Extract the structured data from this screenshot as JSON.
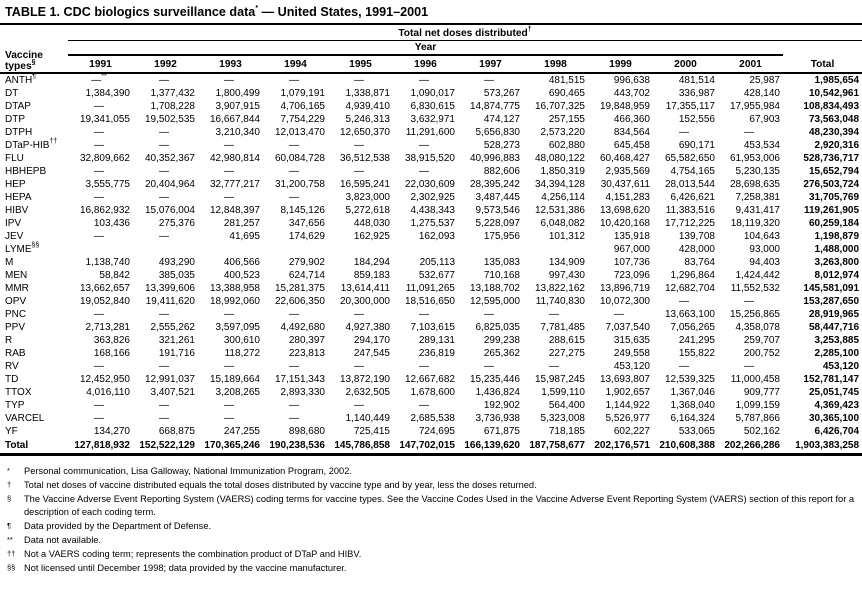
{
  "title": {
    "main": "TABLE 1. CDC biologics surveillance data",
    "sup": "*",
    "rest": " — United States, 1991–2001"
  },
  "table": {
    "group_header": {
      "label": "Total net doses distributed",
      "sup": "†"
    },
    "year_header": "Year",
    "vaccine_col_header": {
      "line1": "Vaccine",
      "line2": "types",
      "sup": "§"
    },
    "columns": [
      "1991",
      "1992",
      "1993",
      "1994",
      "1995",
      "1996",
      "1997",
      "1998",
      "1999",
      "2000",
      "2001",
      "Total"
    ],
    "rows": [
      {
        "label": "ANTH",
        "sup": "¶",
        "values": [
          "—**",
          "—",
          "—",
          "—",
          "—",
          "—",
          "—",
          "481,515",
          "996,638",
          "481,514",
          "25,987",
          "1,985,654"
        ]
      },
      {
        "label": "DT",
        "sup": "",
        "values": [
          "1,384,390",
          "1,377,432",
          "1,800,499",
          "1,079,191",
          "1,338,871",
          "1,090,017",
          "573,267",
          "690,465",
          "443,702",
          "336,987",
          "428,140",
          "10,542,961"
        ]
      },
      {
        "label": "DTAP",
        "sup": "",
        "values": [
          "—",
          "1,708,228",
          "3,907,915",
          "4,706,165",
          "4,939,410",
          "6,830,615",
          "14,874,775",
          "16,707,325",
          "19,848,959",
          "17,355,117",
          "17,955,984",
          "108,834,493"
        ]
      },
      {
        "label": "DTP",
        "sup": "",
        "values": [
          "19,341,055",
          "19,502,535",
          "16,667,844",
          "7,754,229",
          "5,246,313",
          "3,632,971",
          "474,127",
          "257,155",
          "466,360",
          "152,556",
          "67,903",
          "73,563,048"
        ]
      },
      {
        "label": "DTPH",
        "sup": "",
        "values": [
          "—",
          "—",
          "3,210,340",
          "12,013,470",
          "12,650,370",
          "11,291,600",
          "5,656,830",
          "2,573,220",
          "834,564",
          "—",
          "—",
          "48,230,394"
        ]
      },
      {
        "label": "DTaP-HIB",
        "sup": "††",
        "values": [
          "—",
          "—",
          "—",
          "—",
          "—",
          "—",
          "528,273",
          "602,880",
          "645,458",
          "690,171",
          "453,534",
          "2,920,316"
        ]
      },
      {
        "label": "FLU",
        "sup": "",
        "values": [
          "32,809,662",
          "40,352,367",
          "42,980,814",
          "60,084,728",
          "36,512,538",
          "38,915,520",
          "40,996,883",
          "48,080,122",
          "60,468,427",
          "65,582,650",
          "61,953,006",
          "528,736,717"
        ]
      },
      {
        "label": "HBHEPB",
        "sup": "",
        "values": [
          "—",
          "—",
          "—",
          "—",
          "—",
          "—",
          "882,606",
          "1,850,319",
          "2,935,569",
          "4,754,165",
          "5,230,135",
          "15,652,794"
        ]
      },
      {
        "label": "HEP",
        "sup": "",
        "values": [
          "3,555,775",
          "20,404,964",
          "32,777,217",
          "31,200,758",
          "16,595,241",
          "22,030,609",
          "28,395,242",
          "34,394,128",
          "30,437,611",
          "28,013,544",
          "28,698,635",
          "276,503,724"
        ]
      },
      {
        "label": "HEPA",
        "sup": "",
        "values": [
          "—",
          "—",
          "—",
          "—",
          "3,823,000",
          "2,302,925",
          "3,487,445",
          "4,256,114",
          "4,151,283",
          "6,426,621",
          "7,258,381",
          "31,705,769"
        ]
      },
      {
        "label": "HIBV",
        "sup": "",
        "values": [
          "16,862,932",
          "15,076,004",
          "12,848,397",
          "8,145,126",
          "5,272,618",
          "4,438,343",
          "9,573,546",
          "12,531,386",
          "13,698,620",
          "11,383,516",
          "9,431,417",
          "119,261,905"
        ]
      },
      {
        "label": "IPV",
        "sup": "",
        "values": [
          "103,436",
          "275,376",
          "281,257",
          "347,656",
          "448,030",
          "1,275,537",
          "5,228,097",
          "6,048,082",
          "10,420,168",
          "17,712,225",
          "18,119,320",
          "60,259,184"
        ]
      },
      {
        "label": "JEV",
        "sup": "",
        "values": [
          "—",
          "—",
          "41,695",
          "174,629",
          "162,925",
          "162,093",
          "175,956",
          "101,312",
          "135,918",
          "139,708",
          "104,643",
          "1,198,879"
        ]
      },
      {
        "label": "LYME",
        "sup": "§§",
        "values": [
          "",
          "",
          "",
          "",
          "",
          "",
          "",
          "",
          "967,000",
          "428,000",
          "93,000",
          "1,488,000"
        ]
      },
      {
        "label": "M",
        "sup": "",
        "values": [
          "1,138,740",
          "493,290",
          "406,566",
          "279,902",
          "184,294",
          "205,113",
          "135,083",
          "134,909",
          "107,736",
          "83,764",
          "94,403",
          "3,263,800"
        ]
      },
      {
        "label": "MEN",
        "sup": "",
        "values": [
          "58,842",
          "385,035",
          "400,523",
          "624,714",
          "859,183",
          "532,677",
          "710,168",
          "997,430",
          "723,096",
          "1,296,864",
          "1,424,442",
          "8,012,974"
        ]
      },
      {
        "label": "MMR",
        "sup": "",
        "values": [
          "13,662,657",
          "13,399,606",
          "13,388,958",
          "15,281,375",
          "13,614,411",
          "11,091,265",
          "13,188,702",
          "13,822,162",
          "13,896,719",
          "12,682,704",
          "11,552,532",
          "145,581,091"
        ]
      },
      {
        "label": "OPV",
        "sup": "",
        "values": [
          "19,052,840",
          "19,411,620",
          "18,992,060",
          "22,606,350",
          "20,300,000",
          "18,516,650",
          "12,595,000",
          "11,740,830",
          "10,072,300",
          "—",
          "—",
          "153,287,650"
        ]
      },
      {
        "label": "PNC",
        "sup": "",
        "values": [
          "—",
          "—",
          "—",
          "—",
          "—",
          "—",
          "—",
          "—",
          "—",
          "13,663,100",
          "15,256,865",
          "28,919,965"
        ]
      },
      {
        "label": "PPV",
        "sup": "",
        "values": [
          "2,713,281",
          "2,555,262",
          "3,597,095",
          "4,492,680",
          "4,927,380",
          "7,103,615",
          "6,825,035",
          "7,781,485",
          "7,037,540",
          "7,056,265",
          "4,358,078",
          "58,447,716"
        ]
      },
      {
        "label": "R",
        "sup": "",
        "values": [
          "363,826",
          "321,261",
          "300,610",
          "280,397",
          "294,170",
          "289,131",
          "299,238",
          "288,615",
          "315,635",
          "241,295",
          "259,707",
          "3,253,885"
        ]
      },
      {
        "label": "RAB",
        "sup": "",
        "values": [
          "168,166",
          "191,716",
          "118,272",
          "223,813",
          "247,545",
          "236,819",
          "265,362",
          "227,275",
          "249,558",
          "155,822",
          "200,752",
          "2,285,100"
        ]
      },
      {
        "label": "RV",
        "sup": "",
        "values": [
          "—",
          "—",
          "—",
          "—",
          "—",
          "—",
          "—",
          "—",
          "453,120",
          "—",
          "—",
          "453,120"
        ]
      },
      {
        "label": "TD",
        "sup": "",
        "values": [
          "12,452,950",
          "12,991,037",
          "15,189,664",
          "17,151,343",
          "13,872,190",
          "12,667,682",
          "15,235,446",
          "15,987,245",
          "13,693,807",
          "12,539,325",
          "11,000,458",
          "152,781,147"
        ]
      },
      {
        "label": "TTOX",
        "sup": "",
        "values": [
          "4,016,110",
          "3,407,521",
          "3,208,265",
          "2,893,330",
          "2,632,505",
          "1,678,600",
          "1,436,824",
          "1,599,110",
          "1,902,657",
          "1,367,046",
          "909,777",
          "25,051,745"
        ]
      },
      {
        "label": "TYP",
        "sup": "",
        "values": [
          "—",
          "—",
          "—",
          "—",
          "—",
          "—",
          "192,902",
          "564,400",
          "1,144,922",
          "1,368,040",
          "1,099,159",
          "4,369,423"
        ]
      },
      {
        "label": "VARCEL",
        "sup": "",
        "values": [
          "—",
          "—",
          "—",
          "—",
          "1,140,449",
          "2,685,538",
          "3,736,938",
          "5,323,008",
          "5,526,977",
          "6,164,324",
          "5,787,866",
          "30,365,100"
        ]
      },
      {
        "label": "YF",
        "sup": "",
        "values": [
          "134,270",
          "668,875",
          "247,255",
          "898,680",
          "725,415",
          "724,695",
          "671,875",
          "718,185",
          "602,227",
          "533,065",
          "502,162",
          "6,426,704"
        ]
      }
    ],
    "total_row": {
      "label": "Total",
      "values": [
        "127,818,932",
        "152,522,129",
        "170,365,246",
        "190,238,536",
        "145,786,858",
        "147,702,015",
        "166,139,620",
        "187,758,677",
        "202,176,571",
        "210,608,388",
        "202,266,286",
        "1,903,383,258"
      ]
    }
  },
  "footnotes": [
    {
      "marker": "*",
      "text": "Personal communication, Lisa Galloway, National Immunization Program, 2002."
    },
    {
      "marker": "†",
      "text": "Total net doses of vaccine distributed equals the total doses distributed by vaccine type and by year, less the doses returned."
    },
    {
      "marker": "§",
      "text": "The Vaccine Adverse Event Reporting System (VAERS) coding terms for vaccine types. See the Vaccine Codes Used in the Vaccine Adverse Event Reporting System (VAERS) section of this report for a description of each coding term."
    },
    {
      "marker": "¶",
      "text": "Data provided by the Department of Defense."
    },
    {
      "marker": "**",
      "text": "Data not available."
    },
    {
      "marker": "††",
      "text": "Not a VAERS coding term; represents the combination product of DTaP and HIBV."
    },
    {
      "marker": "§§",
      "text": "Not licensed until December 1998; data provided by the vaccine manufacturer."
    }
  ]
}
